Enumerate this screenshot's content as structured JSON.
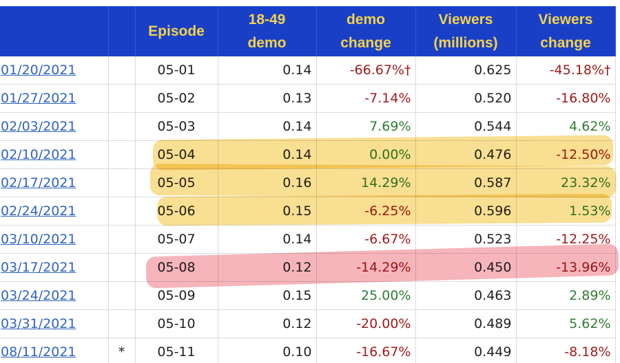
{
  "header": {
    "episode": "Episode",
    "demo_line1": "18-49",
    "demo_line2": "demo",
    "demo_change_line1": "demo",
    "demo_change_line2": "change",
    "viewers_line1": "Viewers",
    "viewers_line2": "(millions)",
    "viewers_change_line1": "Viewers",
    "viewers_change_line2": "change"
  },
  "rows": [
    {
      "date": "01/20/2021",
      "mark": "",
      "episode": "05-01",
      "demo": "0.14",
      "demo_change": "-66.67%†",
      "demo_change_sign": "neg",
      "viewers": "0.625",
      "viewers_change": "-45.18%†",
      "viewers_change_sign": "neg"
    },
    {
      "date": "01/27/2021",
      "mark": "",
      "episode": "05-02",
      "demo": "0.13",
      "demo_change": "-7.14%",
      "demo_change_sign": "neg",
      "viewers": "0.520",
      "viewers_change": "-16.80%",
      "viewers_change_sign": "neg"
    },
    {
      "date": "02/03/2021",
      "mark": "",
      "episode": "05-03",
      "demo": "0.14",
      "demo_change": "7.69%",
      "demo_change_sign": "pos",
      "viewers": "0.544",
      "viewers_change": "4.62%",
      "viewers_change_sign": "pos"
    },
    {
      "date": "02/10/2021",
      "mark": "",
      "episode": "05-04",
      "demo": "0.14",
      "demo_change": "0.00%",
      "demo_change_sign": "pos",
      "viewers": "0.476",
      "viewers_change": "-12.50%",
      "viewers_change_sign": "neg"
    },
    {
      "date": "02/17/2021",
      "mark": "",
      "episode": "05-05",
      "demo": "0.16",
      "demo_change": "14.29%",
      "demo_change_sign": "pos",
      "viewers": "0.587",
      "viewers_change": "23.32%",
      "viewers_change_sign": "pos"
    },
    {
      "date": "02/24/2021",
      "mark": "",
      "episode": "05-06",
      "demo": "0.15",
      "demo_change": "-6.25%",
      "demo_change_sign": "neg",
      "viewers": "0.596",
      "viewers_change": "1.53%",
      "viewers_change_sign": "pos"
    },
    {
      "date": "03/10/2021",
      "mark": "",
      "episode": "05-07",
      "demo": "0.14",
      "demo_change": "-6.67%",
      "demo_change_sign": "neg",
      "viewers": "0.523",
      "viewers_change": "-12.25%",
      "viewers_change_sign": "neg"
    },
    {
      "date": "03/17/2021",
      "mark": "",
      "episode": "05-08",
      "demo": "0.12",
      "demo_change": "-14.29%",
      "demo_change_sign": "neg",
      "viewers": "0.450",
      "viewers_change": "-13.96%",
      "viewers_change_sign": "neg"
    },
    {
      "date": "03/24/2021",
      "mark": "",
      "episode": "05-09",
      "demo": "0.15",
      "demo_change": "25.00%",
      "demo_change_sign": "pos",
      "viewers": "0.463",
      "viewers_change": "2.89%",
      "viewers_change_sign": "pos"
    },
    {
      "date": "03/31/2021",
      "mark": "",
      "episode": "05-10",
      "demo": "0.12",
      "demo_change": "-20.00%",
      "demo_change_sign": "neg",
      "viewers": "0.489",
      "viewers_change": "5.62%",
      "viewers_change_sign": "pos"
    },
    {
      "date": "08/11/2021",
      "mark": "*",
      "episode": "05-11",
      "demo": "0.10",
      "demo_change": "-16.67%",
      "demo_change_sign": "neg",
      "viewers": "0.449",
      "viewers_change": "-8.18%",
      "viewers_change_sign": "neg"
    }
  ],
  "highlights": {
    "yellow_color": "#f4c438",
    "red_color": "#ec5c68"
  }
}
